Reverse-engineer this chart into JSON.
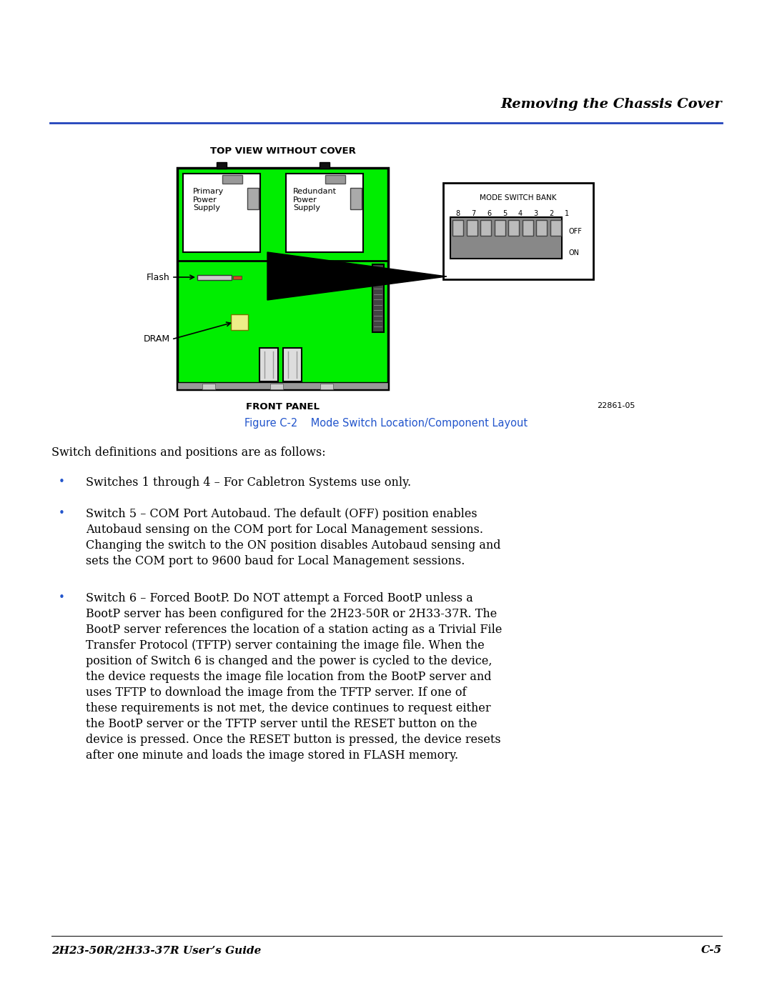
{
  "page_bg": "#ffffff",
  "header_title": "Removing the Chassis Cover",
  "header_line_color": "#2244bb",
  "diagram_title": "TOP VIEW WITHOUT COVER",
  "figure_caption": "Figure C-2    Mode Switch Location/Component Layout",
  "figure_caption_color": "#2255cc",
  "front_panel_label": "FRONT PANEL",
  "doc_number": "22861-05",
  "footer_left": "2H23-50R/2H33-37R User’s Guide",
  "footer_right": "C-5",
  "flash_label": "Flash",
  "dram_label": "DRAM",
  "mode_switch_bank_label": "MODE SWITCH BANK",
  "switch_numbers": [
    "8",
    "7",
    "6",
    "5",
    "4",
    "3",
    "2",
    "1"
  ],
  "off_label": "OFF",
  "on_label": "ON",
  "primary_supply_label": "Primary\nPower\nSupply",
  "redundant_supply_label": "Redundant\nPower\nSupply",
  "chassis_green": "#00ee00",
  "text_body_line": "Switch definitions and positions are as follows:",
  "bullet1": "Switches 1 through 4 – For Cabletron Systems use only.",
  "bullet2_lines": [
    "Switch 5 – COM Port Autobaud. The default (OFF) position enables",
    "Autobaud sensing on the COM port for Local Management sessions.",
    "Changing the switch to the ON position disables Autobaud sensing and",
    "sets the COM port to 9600 baud for Local Management sessions."
  ],
  "bullet3_lines": [
    "Switch 6 – Forced BootP. Do NOT attempt a Forced BootP unless a",
    "BootP server has been configured for the 2H23-50R or 2H33-37R. The",
    "BootP server references the location of a station acting as a Trivial File",
    "Transfer Protocol (TFTP) server containing the image file. When the",
    "position of Switch 6 is changed and the power is cycled to the device,",
    "the device requests the image file location from the BootP server and",
    "uses TFTP to download the image from the TFTP server. If one of",
    "these requirements is not met, the device continues to request either",
    "the BootP server or the TFTP server until the RESET button on the",
    "device is pressed. Once the RESET button is pressed, the device resets",
    "after one minute and loads the image stored in FLASH memory."
  ]
}
